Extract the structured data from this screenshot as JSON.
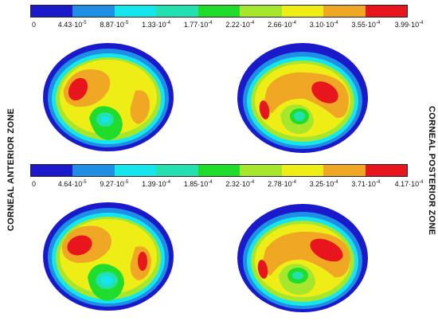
{
  "colorbar_top": {
    "colors": [
      "#1a1acc",
      "#1f8fe6",
      "#15e6ee",
      "#22e0b0",
      "#1fdd2a",
      "#a6e62c",
      "#eeee16",
      "#f0a824",
      "#e8161c"
    ],
    "ticks": [
      "0",
      "4.43·10",
      "8.87·10",
      "1.33·10",
      "1.77·10",
      "2.22·10",
      "2.66·10",
      "3.10·10",
      "3.55·10",
      "3.99·10"
    ],
    "exponents": [
      "",
      "-5",
      "-5",
      "-4",
      "-4",
      "-4",
      "-4",
      "-4",
      "-4",
      "-4"
    ]
  },
  "colorbar_bottom": {
    "colors": [
      "#1a1acc",
      "#1f8fe6",
      "#15e6ee",
      "#22e0b0",
      "#1fdd2a",
      "#a6e62c",
      "#eeee16",
      "#f0a824",
      "#e8161c"
    ],
    "ticks": [
      "0",
      "4.64·10",
      "9.27·10",
      "1.39·10",
      "1.85·10",
      "2.32·10",
      "2.78·10",
      "3.25·10",
      "3.71·10",
      "4.17·10"
    ],
    "exponents": [
      "",
      "-5",
      "-5",
      "-4",
      "-4",
      "-4",
      "-4",
      "-4",
      "-4",
      "-4"
    ]
  },
  "labels": {
    "left": "CORNEAL ANTERIOR ZONE",
    "right": "CORNEAL  POSTERIOR  ZONE"
  }
}
